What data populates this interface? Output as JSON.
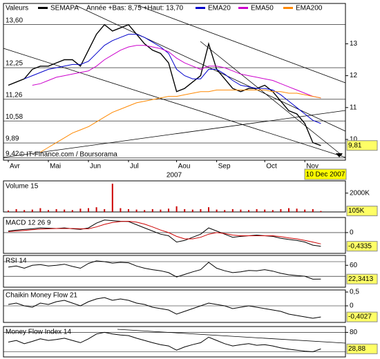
{
  "chart_data": [
    {
      "type": "line",
      "title": "Valeurs",
      "subtitle": "Année +Bas: 8,75 +Haut: 13,70",
      "categories": [
        "Avr",
        null,
        null,
        null,
        null,
        "Mai",
        null,
        null,
        null,
        null,
        "Jun",
        null,
        null,
        null,
        null,
        "Jul",
        null,
        null,
        null,
        null,
        null,
        "Aou",
        null,
        null,
        null,
        null,
        "Sep",
        null,
        null,
        null,
        null,
        null,
        "Oct",
        null,
        null,
        null,
        null,
        "Nov",
        null,
        null
      ],
      "x_label": "2007",
      "date_label": "10 Dec 2007",
      "annotation": "© IT-Finance.com / Boursorama",
      "series": [
        {
          "name": "SEMAPA",
          "color": "#000000",
          "values": [
            11.7,
            11.8,
            11.9,
            12.2,
            12.3,
            12.3,
            12.4,
            12.5,
            12.5,
            12.3,
            12.8,
            13.3,
            13.6,
            13.4,
            13.5,
            13.6,
            13.3,
            13.0,
            12.8,
            12.7,
            12.4,
            11.5,
            11.6,
            11.8,
            12.0,
            13.0,
            12.2,
            11.9,
            11.6,
            11.5,
            11.6,
            11.6,
            11.7,
            11.5,
            11.2,
            10.9,
            10.8,
            10.5,
            9.9,
            9.81
          ]
        },
        {
          "name": "EMA20",
          "color": "#0000cc",
          "values": [
            null,
            null,
            11.9,
            12.0,
            12.1,
            12.2,
            12.25,
            12.3,
            12.35,
            12.35,
            12.45,
            12.7,
            12.95,
            13.1,
            13.2,
            13.3,
            13.3,
            13.2,
            13.05,
            12.9,
            12.7,
            12.2,
            12.0,
            11.9,
            11.9,
            12.2,
            12.2,
            12.05,
            11.85,
            11.7,
            11.65,
            11.6,
            11.6,
            11.55,
            11.4,
            11.2,
            11.0,
            10.8,
            10.6,
            10.5
          ]
        },
        {
          "name": "EMA50",
          "color": "#cc00cc",
          "values": [
            null,
            null,
            null,
            11.7,
            11.75,
            11.85,
            11.95,
            12.0,
            12.05,
            12.1,
            12.15,
            12.3,
            12.5,
            12.65,
            12.8,
            12.9,
            12.95,
            12.95,
            12.9,
            12.85,
            12.75,
            12.55,
            12.4,
            12.3,
            12.2,
            12.3,
            12.3,
            12.25,
            12.15,
            12.05,
            12.0,
            11.95,
            11.9,
            11.85,
            11.75,
            11.65,
            11.55,
            11.45,
            11.35,
            11.3
          ]
        },
        {
          "name": "EMA200",
          "color": "#ff8800",
          "values": [
            null,
            null,
            null,
            null,
            9.6,
            9.75,
            9.9,
            10.05,
            10.2,
            10.3,
            10.4,
            10.55,
            10.7,
            10.85,
            10.95,
            11.05,
            11.15,
            11.2,
            11.25,
            11.3,
            11.35,
            11.35,
            11.4,
            11.45,
            11.5,
            11.5,
            11.55,
            11.55,
            11.55,
            11.55,
            11.55,
            11.55,
            11.55,
            11.5,
            11.5,
            11.45,
            11.45,
            11.4,
            11.35,
            11.3
          ]
        }
      ],
      "ylim": [
        9.35,
        14.2
      ],
      "yticks": [
        {
          "value": 13.6,
          "label": "13,60"
        },
        {
          "value": 12.25,
          "label": "12,25"
        },
        {
          "value": 11.26,
          "label": "11,26"
        },
        {
          "value": 10.58,
          "label": "10,58"
        },
        {
          "value": 9.89,
          "label": "9,89"
        },
        {
          "value": 9.42,
          "label": "9,42"
        }
      ],
      "y2lim": [
        9.35,
        14.2
      ],
      "y2ticks": [
        13,
        12,
        11,
        10
      ],
      "grid": true,
      "current_value": 9.81,
      "current_label": "9,81"
    },
    {
      "type": "bar",
      "title": "Volume 15",
      "color": "#cc0000",
      "values": [
        150000,
        300000,
        200000,
        250000,
        400000,
        200000,
        300000,
        250000,
        200000,
        350000,
        400000,
        500000,
        300000,
        3000000,
        400000,
        300000,
        250000,
        200000,
        300000,
        250000,
        350000,
        600000,
        300000,
        250000,
        300000,
        500000,
        250000,
        200000,
        300000,
        250000,
        200000,
        300000,
        250000,
        200000,
        300000,
        400000,
        350000,
        250000,
        300000,
        105000
      ],
      "ylim": [
        0,
        3300000
      ],
      "yticks": [
        {
          "value": 2000000,
          "label": "2000K"
        }
      ],
      "current_value": 105000,
      "current_label": "105K"
    },
    {
      "type": "line",
      "title": "MACD 12 26 9",
      "series": [
        {
          "color": "#000000",
          "values": [
            0.05,
            0.08,
            0.1,
            0.12,
            0.15,
            0.14,
            0.13,
            0.15,
            0.12,
            0.1,
            0.15,
            0.3,
            0.4,
            0.38,
            0.36,
            0.35,
            0.25,
            0.15,
            0.05,
            -0.05,
            -0.1,
            -0.3,
            -0.25,
            -0.15,
            -0.05,
            0.15,
            0.05,
            -0.05,
            -0.15,
            -0.12,
            -0.1,
            -0.08,
            -0.1,
            -0.12,
            -0.18,
            -0.22,
            -0.25,
            -0.3,
            -0.4,
            -0.4335
          ]
        },
        {
          "color": "#cc0000",
          "values": [
            0.03,
            0.05,
            0.07,
            0.09,
            0.11,
            0.12,
            0.13,
            0.13,
            0.13,
            0.12,
            0.12,
            0.18,
            0.26,
            0.32,
            0.35,
            0.36,
            0.33,
            0.27,
            0.18,
            0.08,
            0,
            -0.12,
            -0.2,
            -0.2,
            -0.15,
            -0.05,
            0,
            -0.03,
            -0.08,
            -0.1,
            -0.1,
            -0.1,
            -0.1,
            -0.1,
            -0.13,
            -0.17,
            -0.2,
            -0.25,
            -0.3,
            -0.36
          ]
        }
      ],
      "ylim": [
        -0.66,
        0.48
      ],
      "yticks": [
        0
      ],
      "levels": [
        0
      ],
      "current_value": -0.4335,
      "current_label": "-0,4335"
    },
    {
      "type": "line",
      "title": "RSI 14",
      "series": [
        {
          "color": "#000000",
          "values": [
            55,
            58,
            52,
            60,
            62,
            58,
            60,
            63,
            57,
            52,
            65,
            72,
            70,
            66,
            68,
            67,
            58,
            52,
            48,
            45,
            40,
            28,
            35,
            42,
            48,
            68,
            52,
            45,
            40,
            42,
            46,
            45,
            48,
            44,
            38,
            34,
            32,
            30,
            22,
            22.3413
          ]
        }
      ],
      "ylim": [
        0,
        87
      ],
      "yticks": [
        60
      ],
      "levels": [
        70,
        30
      ],
      "current_value": 22.3413,
      "current_label": "22,3413"
    },
    {
      "type": "line",
      "title": "Chaikin Money Flow 21",
      "series": [
        {
          "color": "#000000",
          "values": [
            0.05,
            0.1,
            0,
            -0.05,
            0.1,
            0.05,
            0.15,
            0.2,
            0.1,
            0,
            0.15,
            0.25,
            0.3,
            0.2,
            0.25,
            0.2,
            0.1,
            0.05,
            -0.05,
            -0.1,
            -0.15,
            -0.3,
            -0.2,
            -0.1,
            0,
            0.1,
            0.05,
            0,
            -0.1,
            -0.05,
            0,
            -0.05,
            -0.1,
            -0.15,
            -0.2,
            -0.3,
            -0.35,
            -0.4,
            -0.45,
            -0.4027
          ]
        }
      ],
      "ylim": [
        -0.6,
        0.575
      ],
      "yticks": [
        {
          "value": 0.5,
          "label": "0,5"
        },
        0
      ],
      "levels": [
        0
      ],
      "current_value": -0.4027,
      "current_label": "-0,4027"
    },
    {
      "type": "line",
      "title": "Money Flow Index 14",
      "series": [
        {
          "color": "#000000",
          "values": [
            50,
            55,
            45,
            52,
            60,
            55,
            58,
            62,
            55,
            48,
            60,
            75,
            80,
            75,
            72,
            70,
            62,
            55,
            48,
            42,
            38,
            25,
            35,
            42,
            48,
            65,
            55,
            45,
            38,
            42,
            45,
            40,
            42,
            38,
            32,
            28,
            25,
            22,
            20,
            28.88
          ]
        }
      ],
      "ylim": [
        4,
        98
      ],
      "yticks": [
        80
      ],
      "levels": [
        80,
        20
      ],
      "current_value": 28.88,
      "current_label": "28,88"
    }
  ]
}
